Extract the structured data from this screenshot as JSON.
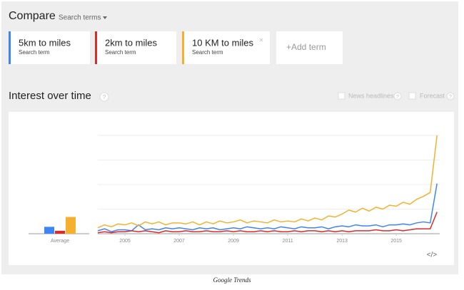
{
  "header": {
    "title": "Compare",
    "dropdown": "Search terms"
  },
  "terms": [
    {
      "label": "5km to miles",
      "sublabel": "Search term",
      "color": "#3d85f5"
    },
    {
      "label": "2km to miles",
      "sublabel": "Search term",
      "color": "#db2a2a"
    },
    {
      "label": "10 KM to miles",
      "sublabel": "Search term",
      "color": "#f5b12e",
      "remove": "×"
    }
  ],
  "add_term": "+Add term",
  "section": {
    "title": "Interest over time",
    "help": "?",
    "options": [
      {
        "label": "News headlines",
        "help": "?"
      },
      {
        "label": "Forecast",
        "help": "?"
      }
    ]
  },
  "chart_data": {
    "type": "line",
    "average_label": "Average",
    "x": [
      2004,
      2004.25,
      2004.5,
      2004.75,
      2005,
      2005.25,
      2005.5,
      2005.75,
      2006,
      2006.25,
      2006.5,
      2006.75,
      2007,
      2007.25,
      2007.5,
      2007.75,
      2008,
      2008.25,
      2008.5,
      2008.75,
      2009,
      2009.25,
      2009.5,
      2009.75,
      2010,
      2010.25,
      2010.5,
      2010.75,
      2011,
      2011.25,
      2011.5,
      2011.75,
      2012,
      2012.25,
      2012.5,
      2012.75,
      2013,
      2013.25,
      2013.5,
      2013.75,
      2014,
      2014.25,
      2014.5,
      2014.75,
      2015,
      2015.25,
      2015.5,
      2015.75,
      2016,
      2016.25,
      2016.5
    ],
    "series": [
      {
        "name": "5km to miles",
        "color": "#3d85f5",
        "average": 7,
        "values": [
          3,
          5,
          2,
          4,
          4,
          3,
          9,
          4,
          5,
          4,
          6,
          5,
          6,
          5,
          4,
          6,
          5,
          6,
          4,
          5,
          6,
          5,
          7,
          6,
          5,
          6,
          5,
          7,
          6,
          5,
          7,
          6,
          6,
          7,
          5,
          7,
          8,
          7,
          9,
          8,
          8,
          9,
          7,
          9,
          9,
          10,
          9,
          11,
          12,
          11,
          51
        ]
      },
      {
        "name": "2km to miles",
        "color": "#db2a2a",
        "average": 3,
        "values": [
          1,
          2,
          1,
          2,
          2,
          3,
          2,
          3,
          2,
          1,
          3,
          2,
          2,
          3,
          2,
          2,
          3,
          2,
          2,
          3,
          2,
          3,
          2,
          2,
          3,
          2,
          3,
          2,
          2,
          3,
          2,
          3,
          3,
          2,
          3,
          2,
          3,
          2,
          3,
          3,
          3,
          4,
          3,
          3,
          4,
          3,
          4,
          5,
          5,
          5,
          22
        ]
      },
      {
        "name": "10 KM to miles",
        "color": "#f5b12e",
        "average": 17,
        "values": [
          6,
          9,
          7,
          10,
          9,
          11,
          8,
          12,
          10,
          12,
          9,
          11,
          11,
          10,
          12,
          9,
          12,
          10,
          13,
          11,
          12,
          14,
          11,
          13,
          12,
          11,
          14,
          12,
          13,
          12,
          15,
          13,
          16,
          14,
          18,
          17,
          20,
          24,
          22,
          26,
          23,
          27,
          25,
          29,
          28,
          32,
          30,
          35,
          38,
          42,
          100
        ]
      }
    ],
    "xlim": [
      2004,
      2016.6
    ],
    "xticks": [
      2005,
      2007,
      2009,
      2011,
      2013,
      2015
    ],
    "ylim": [
      0,
      100
    ],
    "yticks": [
      0,
      25,
      50,
      75,
      100
    ],
    "grid": true
  },
  "embed": "</>",
  "caption": "Google Trends"
}
